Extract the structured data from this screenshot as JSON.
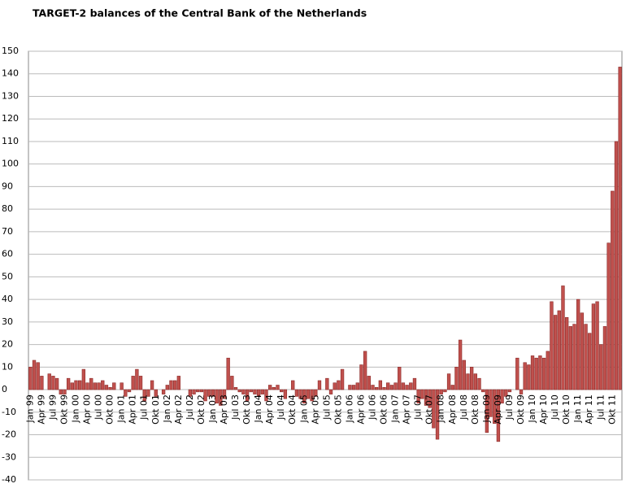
{
  "chart_data": {
    "type": "bar",
    "title": "TARGET-2 balances of the Central Bank of the Netherlands",
    "categories": [
      "Jan 99",
      null,
      null,
      "Apr 99",
      null,
      null,
      "Jul 99",
      null,
      null,
      "Okt 99",
      null,
      null,
      "Jan 00",
      null,
      null,
      "Apr 00",
      null,
      null,
      "Jul 00",
      null,
      null,
      "Okt 00",
      null,
      null,
      "Jan 01",
      null,
      null,
      "Apr 01",
      null,
      null,
      "Jul 01",
      null,
      null,
      "Okt 01",
      null,
      null,
      "Jan 02",
      null,
      null,
      "Apr 02",
      null,
      null,
      "Jul 02",
      null,
      null,
      "Okt 02",
      null,
      null,
      "Jan 03",
      null,
      null,
      "Apr 03",
      null,
      null,
      "Jul 03",
      null,
      null,
      "Okt 03",
      null,
      null,
      "Jan 04",
      null,
      null,
      "Apr 04",
      null,
      null,
      "Jul 04",
      null,
      null,
      "Okt 04",
      null,
      null,
      "Jan 05",
      null,
      null,
      "Apr 05",
      null,
      null,
      "Jul 05",
      null,
      null,
      "Okt 05",
      null,
      null,
      "Jan 06",
      null,
      null,
      "Apr 06",
      null,
      null,
      "Jul 06",
      null,
      null,
      "Okt 06",
      null,
      null,
      "Jan 07",
      null,
      null,
      "Apr 07",
      null,
      null,
      "Jul 07",
      null,
      null,
      "Okt 07",
      null,
      null,
      "Jan 08",
      null,
      null,
      "Apr 08",
      null,
      null,
      "Jul 08",
      null,
      null,
      "Okt 08",
      null,
      null,
      "Jan 09",
      null,
      null,
      "Apr 09",
      null,
      null,
      "Jul 09",
      null,
      null,
      "Okt 09",
      null,
      null,
      "Jan 10",
      null,
      null,
      "Apr 10",
      null,
      null,
      "Jul 10",
      null,
      null,
      "Okt 10",
      null,
      null,
      "Jan 11",
      null,
      null,
      "Apr 11",
      null,
      null,
      "Jul 11",
      null,
      null,
      "Okt 11",
      null,
      null
    ],
    "values": [
      10,
      13,
      12,
      6,
      0,
      7,
      6,
      5,
      -2,
      -2,
      5,
      3,
      4,
      4,
      9,
      3,
      5,
      3,
      3,
      4,
      2,
      1,
      3,
      0,
      3,
      -3,
      -1,
      6,
      9,
      6,
      -5,
      -3,
      4,
      -3,
      0,
      -2,
      2,
      4,
      4,
      6,
      0,
      0,
      -3,
      -2,
      -1,
      -1,
      -5,
      -3,
      -3,
      -6,
      -7,
      -4,
      14,
      6,
      1,
      -1,
      -2,
      -5,
      -1,
      -2,
      -3,
      -2,
      -5,
      2,
      1,
      2,
      -1,
      -4,
      0,
      4,
      -3,
      -4,
      -6,
      -4,
      -5,
      -3,
      4,
      0,
      5,
      -2,
      3,
      4,
      9,
      0,
      2,
      2,
      3,
      11,
      17,
      6,
      2,
      1,
      4,
      1,
      3,
      2,
      3,
      10,
      3,
      2,
      3,
      5,
      -6,
      -4,
      -7,
      -8,
      -17,
      -22,
      -2,
      -1,
      7,
      2,
      10,
      22,
      13,
      7,
      10,
      7,
      5,
      -1,
      -19,
      -12,
      -15,
      -23,
      -6,
      -3,
      -1,
      0,
      14,
      -2,
      12,
      11,
      15,
      14,
      15,
      14,
      17,
      39,
      33,
      35,
      46,
      32,
      28,
      29,
      40,
      34,
      29,
      25,
      38,
      39,
      20,
      28,
      65,
      88,
      110,
      143
    ],
    "color": "#c0504d",
    "ylim": [
      -40,
      150
    ],
    "yticks": [
      -40,
      -30,
      -20,
      -10,
      0,
      10,
      20,
      30,
      40,
      50,
      60,
      70,
      80,
      90,
      100,
      110,
      120,
      130,
      140,
      150
    ],
    "grid": true
  }
}
